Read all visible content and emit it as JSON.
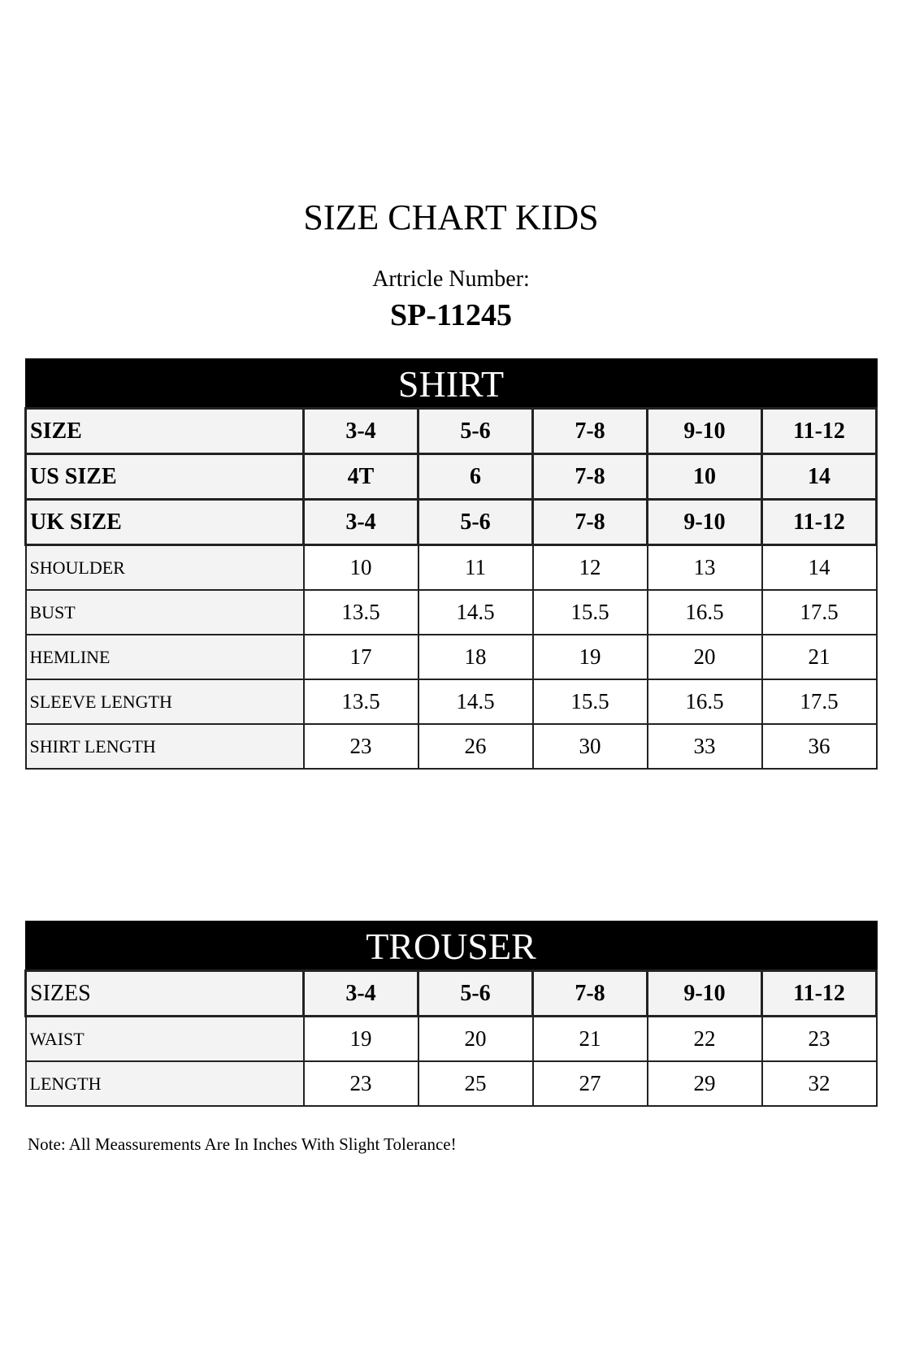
{
  "title": "SIZE CHART KIDS",
  "article_label": "Artricle Number:",
  "article_number": "SP-11245",
  "shirt": {
    "heading": "SHIRT",
    "header_rows": [
      {
        "label": "SIZE",
        "values": [
          "3-4",
          "5-6",
          "7-8",
          "9-10",
          "11-12"
        ]
      },
      {
        "label": "US SIZE",
        "values": [
          "4T",
          "6",
          "7-8",
          "10",
          "14"
        ]
      },
      {
        "label": "UK SIZE",
        "values": [
          "3-4",
          "5-6",
          "7-8",
          "9-10",
          "11-12"
        ]
      }
    ],
    "rows": [
      {
        "label": "SHOULDER",
        "values": [
          "10",
          "11",
          "12",
          "13",
          "14"
        ]
      },
      {
        "label": "BUST",
        "values": [
          "13.5",
          "14.5",
          "15.5",
          "16.5",
          "17.5"
        ]
      },
      {
        "label": "HEMLINE",
        "values": [
          "17",
          "18",
          "19",
          "20",
          "21"
        ]
      },
      {
        "label": "SLEEVE LENGTH",
        "values": [
          "13.5",
          "14.5",
          "15.5",
          "16.5",
          "17.5"
        ]
      },
      {
        "label": "SHIRT LENGTH",
        "values": [
          "23",
          "26",
          "30",
          "33",
          "36"
        ]
      }
    ]
  },
  "trouser": {
    "heading": "TROUSER",
    "header_rows": [
      {
        "label": "SIZES",
        "values": [
          "3-4",
          "5-6",
          "7-8",
          "9-10",
          "11-12"
        ]
      }
    ],
    "rows": [
      {
        "label": "WAIST",
        "values": [
          "19",
          "20",
          "21",
          "22",
          "23"
        ]
      },
      {
        "label": "LENGTH",
        "values": [
          "23",
          "25",
          "27",
          "29",
          "32"
        ]
      }
    ]
  },
  "note": "Note: All Meassurements Are In Inches With Slight Tolerance!"
}
